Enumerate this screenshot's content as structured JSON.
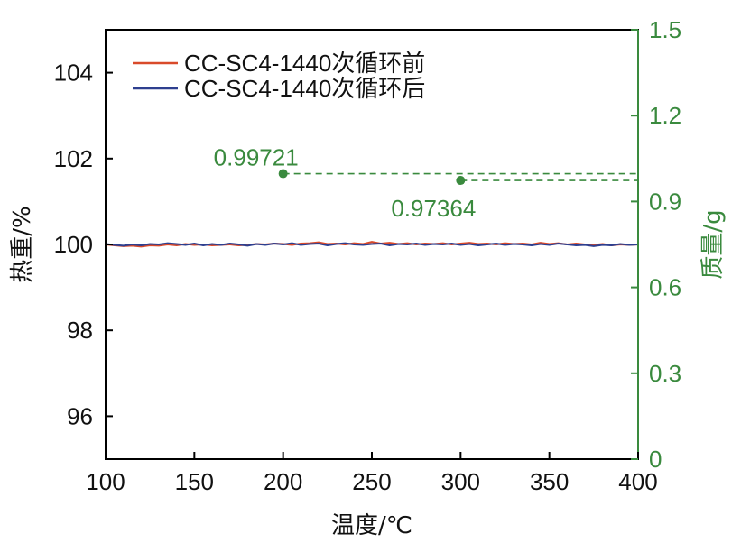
{
  "chart_data": {
    "type": "line",
    "title": "",
    "xlabel": "温度/℃",
    "ylabel_left": "热重/%",
    "ylabel_right": "质量/g",
    "xlim": [
      100,
      400
    ],
    "ylim_left": [
      95,
      105
    ],
    "ylim_right": [
      0,
      1.5
    ],
    "xticks": [
      "100",
      "150",
      "200",
      "250",
      "300",
      "350",
      "400"
    ],
    "yticks_left": [
      "96",
      "98",
      "100",
      "102",
      "104"
    ],
    "yticks_right": [
      "0",
      "0.3",
      "0.6",
      "0.9",
      "1.2",
      "1.5"
    ],
    "grid": false,
    "legend_position": "top-left",
    "colors": {
      "right_axis": "#3a8a3e",
      "before": "#d94a2a",
      "after": "#2e3f8f"
    },
    "series": [
      {
        "name": "CC-SC4-1440次循环前",
        "color": "#d94a2a",
        "x": [
          100,
          105,
          110,
          115,
          120,
          125,
          130,
          135,
          140,
          145,
          150,
          155,
          160,
          165,
          170,
          175,
          180,
          185,
          190,
          195,
          200,
          205,
          210,
          215,
          220,
          225,
          230,
          235,
          240,
          245,
          250,
          255,
          260,
          265,
          270,
          275,
          280,
          285,
          290,
          295,
          300,
          305,
          310,
          315,
          320,
          325,
          330,
          335,
          340,
          345,
          350,
          355,
          360,
          365,
          370,
          375,
          380,
          385,
          390,
          395,
          400
        ],
        "y": [
          100.0,
          99.98,
          99.96,
          99.97,
          99.95,
          99.98,
          99.97,
          100.0,
          99.98,
          100.01,
          99.99,
          100.0,
          99.98,
          99.99,
          100.0,
          99.98,
          99.99,
          100.01,
          100.0,
          100.02,
          100.01,
          99.99,
          100.02,
          100.03,
          100.05,
          100.01,
          100.02,
          100.0,
          100.03,
          100.01,
          100.06,
          100.02,
          100.04,
          100.01,
          100.03,
          100.0,
          100.02,
          100.01,
          100.03,
          100.0,
          100.02,
          100.04,
          100.01,
          100.02,
          100.0,
          100.03,
          100.01,
          100.02,
          100.0,
          100.04,
          100.01,
          100.03,
          100.0,
          100.02,
          100.0,
          99.99,
          100.01,
          99.98,
          100.0,
          99.99,
          100.0
        ]
      },
      {
        "name": "CC-SC4-1440次循环后",
        "color": "#2e3f8f",
        "x": [
          100,
          105,
          110,
          115,
          120,
          125,
          130,
          135,
          140,
          145,
          150,
          155,
          160,
          165,
          170,
          175,
          180,
          185,
          190,
          195,
          200,
          205,
          210,
          215,
          220,
          225,
          230,
          235,
          240,
          245,
          250,
          255,
          260,
          265,
          270,
          275,
          280,
          285,
          290,
          295,
          300,
          305,
          310,
          315,
          320,
          325,
          330,
          335,
          340,
          345,
          350,
          355,
          360,
          365,
          370,
          375,
          380,
          385,
          390,
          395,
          400
        ],
        "y": [
          100.01,
          99.99,
          99.97,
          100.0,
          99.98,
          100.01,
          100.0,
          100.03,
          100.01,
          99.99,
          100.02,
          99.98,
          100.01,
          99.99,
          100.02,
          100.0,
          99.97,
          100.01,
          99.99,
          100.02,
          100.0,
          100.03,
          99.99,
          100.01,
          100.02,
          99.98,
          100.01,
          100.03,
          100.0,
          99.99,
          100.01,
          100.02,
          99.98,
          100.01,
          100.0,
          100.02,
          99.99,
          100.01,
          100.0,
          100.02,
          99.99,
          100.01,
          99.98,
          100.0,
          100.02,
          99.99,
          100.01,
          100.0,
          99.98,
          100.01,
          99.99,
          100.02,
          100.0,
          99.98,
          99.99,
          99.96,
          99.99,
          99.98,
          100.01,
          99.99,
          100.0
        ]
      }
    ],
    "annotations": [
      {
        "label": "0.99721",
        "x": 200,
        "y": 0.99721
      },
      {
        "label": "0.97364",
        "x": 300,
        "y": 0.97364
      }
    ]
  }
}
